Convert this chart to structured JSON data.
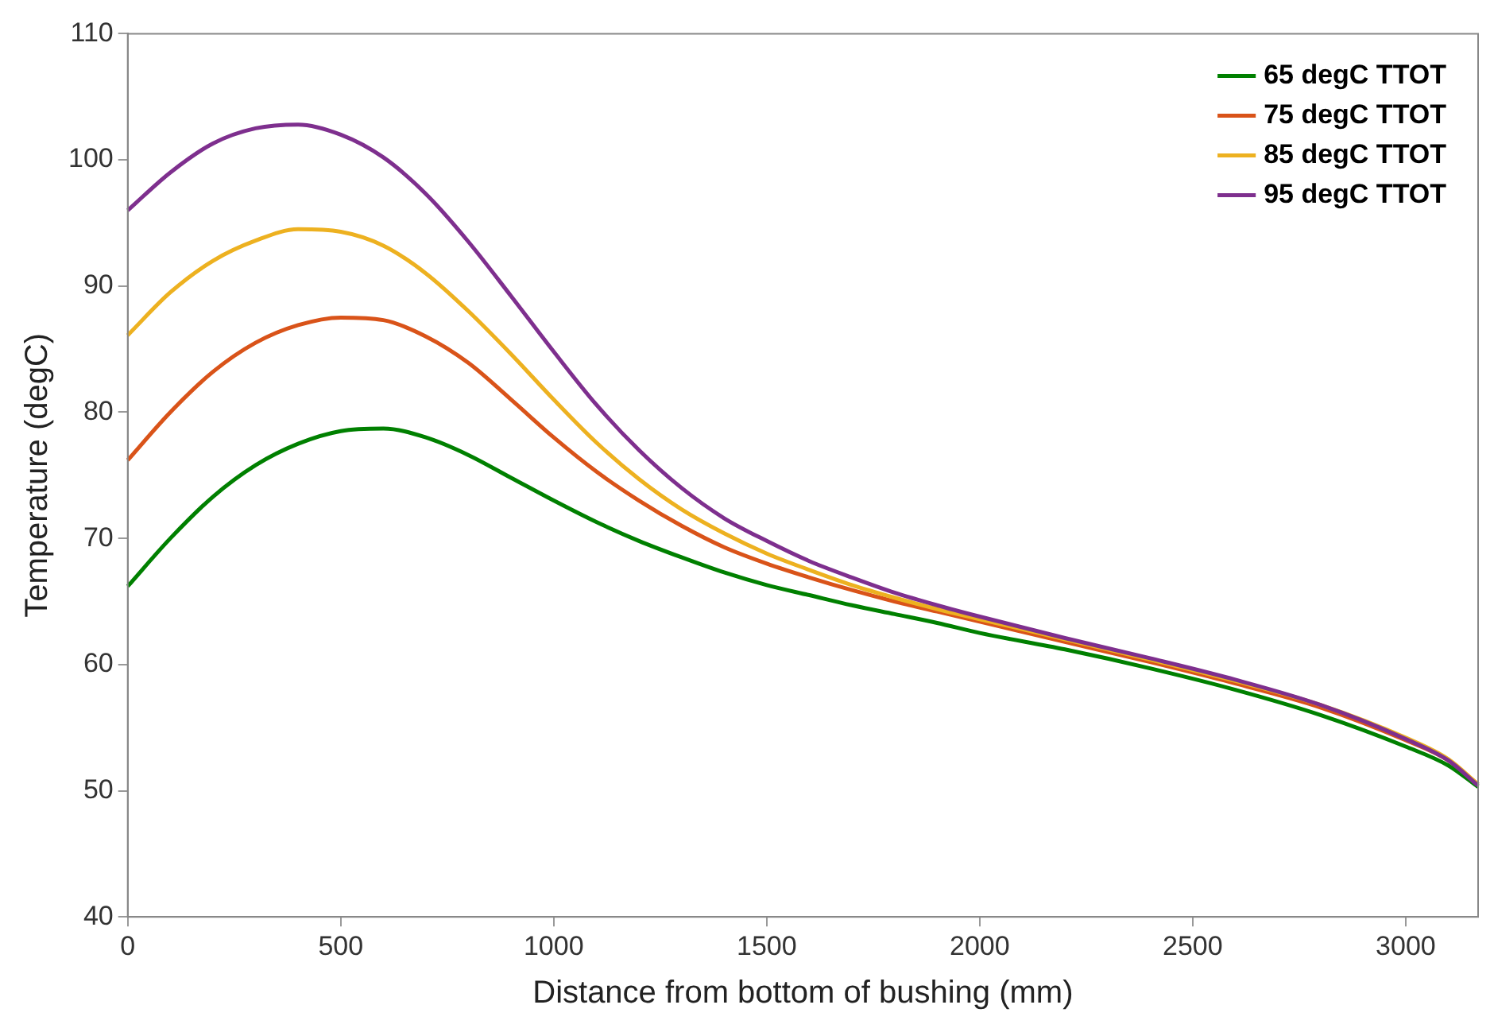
{
  "chart_data": {
    "type": "line",
    "xlabel": "Distance from bottom of bushing (mm)",
    "ylabel": "Temperature (degC)",
    "x": [
      0,
      100,
      200,
      300,
      400,
      500,
      600,
      700,
      800,
      900,
      1000,
      1100,
      1200,
      1300,
      1400,
      1500,
      1600,
      1700,
      1800,
      1900,
      2000,
      2200,
      2400,
      2600,
      2800,
      3000,
      3100,
      3170
    ],
    "series": [
      {
        "name": "65 degC TTOT",
        "color": "#008000",
        "values": [
          66.2,
          70,
          73.3,
          75.8,
          77.5,
          78.5,
          78.7,
          78,
          76.6,
          74.8,
          73,
          71.3,
          69.8,
          68.5,
          67.3,
          66.3,
          65.5,
          64.7,
          64,
          63.3,
          62.5,
          61.2,
          59.7,
          58,
          56,
          53.5,
          52,
          50.3
        ]
      },
      {
        "name": "75 degC TTOT",
        "color": "#d95319",
        "values": [
          76.2,
          80,
          83.2,
          85.5,
          86.9,
          87.5,
          87.3,
          86,
          83.9,
          81,
          78,
          75.3,
          73,
          71,
          69.3,
          68,
          66.9,
          65.9,
          65,
          64.2,
          63.4,
          61.8,
          60.2,
          58.5,
          56.6,
          54,
          52.4,
          50.5
        ]
      },
      {
        "name": "85 degC TTOT",
        "color": "#edb120",
        "values": [
          86.1,
          89.5,
          92,
          93.6,
          94.5,
          94.3,
          93.2,
          91,
          88,
          84.6,
          81,
          77.6,
          74.7,
          72.3,
          70.4,
          68.8,
          67.5,
          66.3,
          65.3,
          64.4,
          63.6,
          62,
          60.4,
          58.7,
          56.8,
          54.2,
          52.5,
          50.5
        ]
      },
      {
        "name": "95 degC TTOT",
        "color": "#7e2f8e",
        "values": [
          96,
          99,
          101.3,
          102.5,
          102.8,
          102,
          100.2,
          97.3,
          93.5,
          89.2,
          84.8,
          80.6,
          77,
          74,
          71.6,
          69.8,
          68.2,
          66.9,
          65.7,
          64.7,
          63.8,
          62.1,
          60.5,
          58.8,
          56.8,
          54.1,
          52.4,
          50.4
        ]
      }
    ],
    "xlim": [
      0,
      3170
    ],
    "xticks": [
      0,
      500,
      1000,
      1500,
      2000,
      2500,
      3000
    ],
    "ylim": [
      40,
      110
    ],
    "yticks": [
      40,
      50,
      60,
      70,
      80,
      90,
      100,
      110
    ],
    "grid": false,
    "legend": "top right",
    "marker": "none",
    "line_style": "solid"
  }
}
